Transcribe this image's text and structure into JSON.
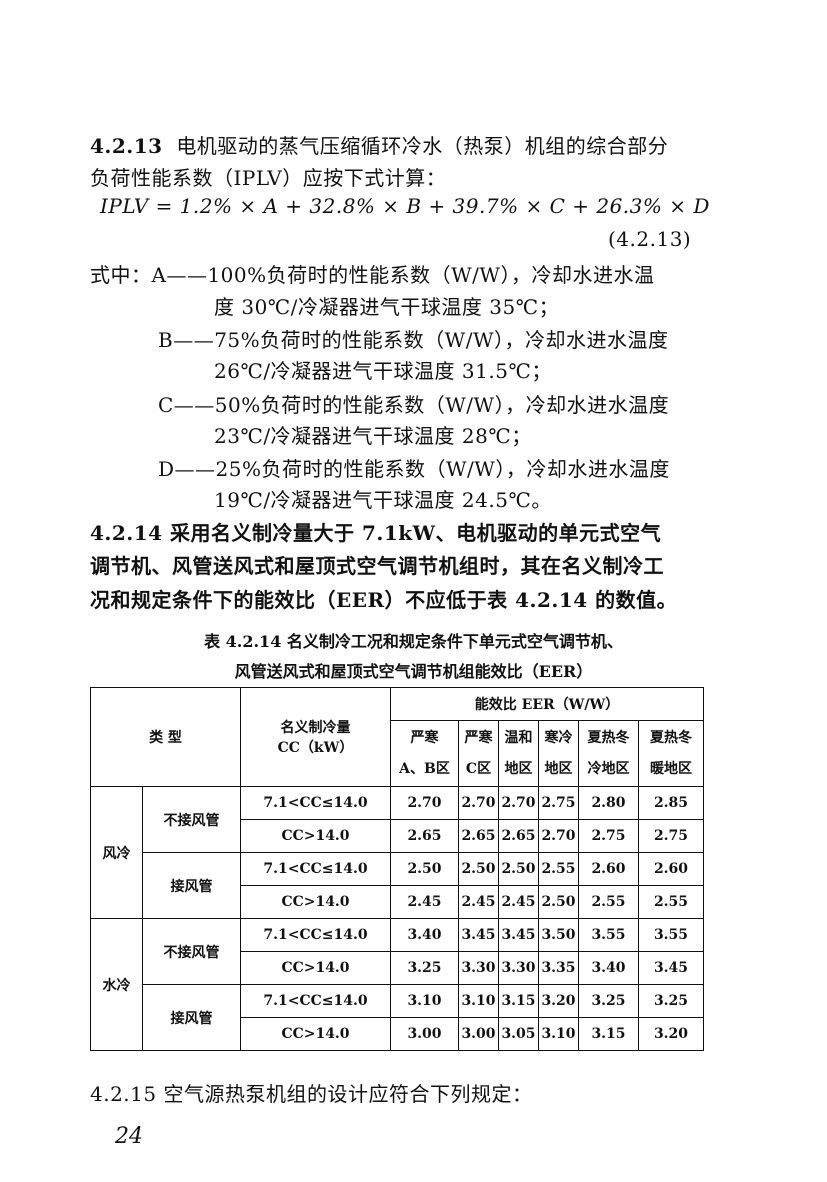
{
  "s4213": {
    "num": "4.2.13",
    "line1": "电机驱动的蒸气压缩循环冷水（热泵）机组的综合部分",
    "line2": "负荷性能系数（IPLV）应按下式计算：",
    "formula": "IPLV = 1.2% × A + 32.8% × B + 39.7% × C + 26.3% × D",
    "eq_no": "(4.2.13)",
    "defs": [
      {
        "l1": "式中：A——100%负荷时的性能系数（W/W），冷却水进水温",
        "l2": "度 30℃/冷凝器进气干球温度 35℃；"
      },
      {
        "l1": "B——75%负荷时的性能系数（W/W），冷却水进水温度",
        "l2": "26℃/冷凝器进气干球温度 31.5℃；"
      },
      {
        "l1": "C——50%负荷时的性能系数（W/W），冷却水进水温度",
        "l2": "23℃/冷凝器进气干球温度 28℃；"
      },
      {
        "l1": "D——25%负荷时的性能系数（W/W），冷却水进水温度",
        "l2": "19℃/冷凝器进气干球温度 24.5℃。"
      }
    ]
  },
  "s4214": {
    "line1": "4.2.14  采用名义制冷量大于 7.1kW、电机驱动的单元式空气",
    "line2": "调节机、风管送风式和屋顶式空气调节机组时，其在名义制冷工",
    "line3": "况和规定条件下的能效比（EER）不应低于表 4.2.14 的数值。"
  },
  "table": {
    "title1": "表 4.2.14  名义制冷工况和规定条件下单元式空气调节机、",
    "title2": "风管送风式和屋顶式空气调节机组能效比（EER）",
    "h_type": "类  型",
    "h_cc1": "名义制冷量",
    "h_cc2": "CC（kW）",
    "h_eer": "能效比 EER（W/W）",
    "zones": [
      [
        "严寒",
        "A、B区"
      ],
      [
        "严寒",
        "C区"
      ],
      [
        "温和",
        "地区"
      ],
      [
        "寒冷",
        "地区"
      ],
      [
        "夏热冬",
        "冷地区"
      ],
      [
        "夏热冬",
        "暖地区"
      ]
    ],
    "groups": [
      {
        "type": "风冷",
        "subs": [
          {
            "name": "不接风管",
            "rows": [
              {
                "cc": "7.1<CC≤14.0",
                "v": [
                  "2.70",
                  "2.70",
                  "2.70",
                  "2.75",
                  "2.80",
                  "2.85"
                ]
              },
              {
                "cc": "CC>14.0",
                "v": [
                  "2.65",
                  "2.65",
                  "2.65",
                  "2.70",
                  "2.75",
                  "2.75"
                ]
              }
            ]
          },
          {
            "name": "接风管",
            "rows": [
              {
                "cc": "7.1<CC≤14.0",
                "v": [
                  "2.50",
                  "2.50",
                  "2.50",
                  "2.55",
                  "2.60",
                  "2.60"
                ]
              },
              {
                "cc": "CC>14.0",
                "v": [
                  "2.45",
                  "2.45",
                  "2.45",
                  "2.50",
                  "2.55",
                  "2.55"
                ]
              }
            ]
          }
        ]
      },
      {
        "type": "水冷",
        "subs": [
          {
            "name": "不接风管",
            "rows": [
              {
                "cc": "7.1<CC≤14.0",
                "v": [
                  "3.40",
                  "3.45",
                  "3.45",
                  "3.50",
                  "3.55",
                  "3.55"
                ]
              },
              {
                "cc": "CC>14.0",
                "v": [
                  "3.25",
                  "3.30",
                  "3.30",
                  "3.35",
                  "3.40",
                  "3.45"
                ]
              }
            ]
          },
          {
            "name": "接风管",
            "rows": [
              {
                "cc": "7.1<CC≤14.0",
                "v": [
                  "3.10",
                  "3.10",
                  "3.15",
                  "3.20",
                  "3.25",
                  "3.25"
                ]
              },
              {
                "cc": "CC>14.0",
                "v": [
                  "3.00",
                  "3.00",
                  "3.05",
                  "3.10",
                  "3.15",
                  "3.20"
                ]
              }
            ]
          }
        ]
      }
    ]
  },
  "s4215": {
    "line": "4.2.15  空气源热泵机组的设计应符合下列规定："
  },
  "page_number": "24"
}
